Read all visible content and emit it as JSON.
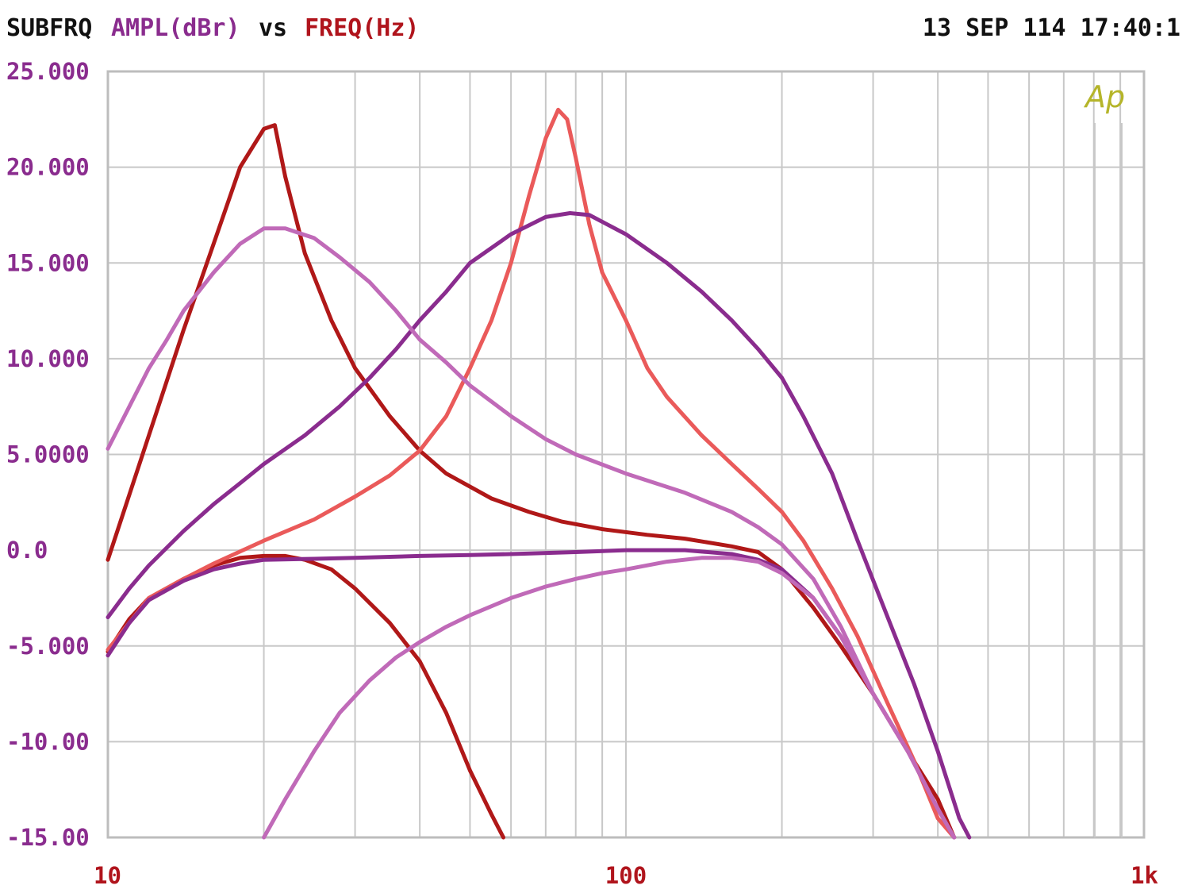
{
  "header": {
    "name": "SUBFRQ",
    "y_quantity": "AMPL(dBr)",
    "vs": "vs",
    "x_quantity": "FREQ(Hz)",
    "timestamp": "13 SEP 114 17:40:1"
  },
  "logo_text": "Ap",
  "colors": {
    "background": "#ffffff",
    "grid": "#c8c8c8",
    "frame": "#bdbdbd",
    "y_axis_text": "#8a2c8e",
    "x_axis_text": "#b0141c",
    "logo": "#b5b52a",
    "dark_red": "#b01818",
    "salmon": "#ea5a5a",
    "purple": "#8a2c8e",
    "lavender": "#c06ab8"
  },
  "chart_data": {
    "type": "line",
    "x_scale": "log",
    "xlim": [
      10,
      1000
    ],
    "ylim": [
      -15,
      25
    ],
    "grid": true,
    "x_ticks": [
      {
        "value": 10,
        "label": "10"
      },
      {
        "value": 100,
        "label": "100"
      },
      {
        "value": 1000,
        "label": "1k"
      }
    ],
    "y_ticks": [
      {
        "value": 25,
        "label": "25.000"
      },
      {
        "value": 20,
        "label": "20.000"
      },
      {
        "value": 15,
        "label": "15.000"
      },
      {
        "value": 10,
        "label": "10.000"
      },
      {
        "value": 5,
        "label": "5.0000"
      },
      {
        "value": 0,
        "label": "0.0"
      },
      {
        "value": -5,
        "label": "-5.000"
      },
      {
        "value": -10,
        "label": "-10.00"
      },
      {
        "value": -15,
        "label": "-15.00"
      }
    ],
    "series": [
      {
        "color": "dark_red",
        "points": [
          [
            10,
            -0.5
          ],
          [
            12,
            6
          ],
          [
            14,
            11.5
          ],
          [
            16,
            16
          ],
          [
            18,
            20
          ],
          [
            20,
            22
          ],
          [
            21,
            22.2
          ],
          [
            22,
            19.5
          ],
          [
            24,
            15.5
          ],
          [
            27,
            12
          ],
          [
            30,
            9.5
          ],
          [
            35,
            7
          ],
          [
            40,
            5.2
          ],
          [
            45,
            4
          ],
          [
            55,
            2.7
          ],
          [
            65,
            2
          ],
          [
            75,
            1.5
          ],
          [
            90,
            1.1
          ],
          [
            110,
            0.8
          ],
          [
            130,
            0.6
          ],
          [
            160,
            0.2
          ],
          [
            180,
            -0.1
          ],
          [
            200,
            -1
          ],
          [
            230,
            -3
          ],
          [
            260,
            -5
          ],
          [
            300,
            -7.5
          ],
          [
            350,
            -10.5
          ],
          [
            400,
            -13
          ],
          [
            430,
            -15
          ]
        ]
      },
      {
        "color": "dark_red",
        "points": [
          [
            10,
            -5.3
          ],
          [
            11,
            -3.6
          ],
          [
            12,
            -2.5
          ],
          [
            14,
            -1.5
          ],
          [
            16,
            -0.8
          ],
          [
            18,
            -0.4
          ],
          [
            20,
            -0.3
          ],
          [
            22,
            -0.3
          ],
          [
            24,
            -0.5
          ],
          [
            27,
            -1
          ],
          [
            30,
            -2
          ],
          [
            35,
            -3.8
          ],
          [
            40,
            -5.8
          ],
          [
            45,
            -8.5
          ],
          [
            50,
            -11.5
          ],
          [
            55,
            -13.8
          ],
          [
            58,
            -15
          ]
        ]
      },
      {
        "color": "salmon",
        "points": [
          [
            10,
            -5.2
          ],
          [
            12,
            -2.5
          ],
          [
            14,
            -1.5
          ],
          [
            16,
            -0.7
          ],
          [
            20,
            0.5
          ],
          [
            25,
            1.6
          ],
          [
            30,
            2.8
          ],
          [
            35,
            3.9
          ],
          [
            40,
            5.2
          ],
          [
            45,
            7
          ],
          [
            50,
            9.5
          ],
          [
            55,
            12
          ],
          [
            60,
            15
          ],
          [
            65,
            18.5
          ],
          [
            70,
            21.5
          ],
          [
            74,
            23
          ],
          [
            77,
            22.5
          ],
          [
            80,
            20.5
          ],
          [
            85,
            17
          ],
          [
            90,
            14.5
          ],
          [
            100,
            12
          ],
          [
            110,
            9.5
          ],
          [
            120,
            8
          ],
          [
            140,
            6
          ],
          [
            160,
            4.5
          ],
          [
            180,
            3.2
          ],
          [
            200,
            2
          ],
          [
            220,
            0.5
          ],
          [
            250,
            -2
          ],
          [
            280,
            -4.5
          ],
          [
            320,
            -8
          ],
          [
            360,
            -11
          ],
          [
            400,
            -14
          ],
          [
            430,
            -15
          ]
        ]
      },
      {
        "color": "purple",
        "points": [
          [
            10,
            -3.5
          ],
          [
            11,
            -2
          ],
          [
            12,
            -0.8
          ],
          [
            14,
            1
          ],
          [
            16,
            2.4
          ],
          [
            18,
            3.5
          ],
          [
            20,
            4.5
          ],
          [
            24,
            6
          ],
          [
            28,
            7.5
          ],
          [
            32,
            9
          ],
          [
            36,
            10.5
          ],
          [
            40,
            12
          ],
          [
            45,
            13.5
          ],
          [
            50,
            15
          ],
          [
            60,
            16.5
          ],
          [
            70,
            17.4
          ],
          [
            78,
            17.6
          ],
          [
            85,
            17.5
          ],
          [
            100,
            16.5
          ],
          [
            120,
            15
          ],
          [
            140,
            13.5
          ],
          [
            160,
            12
          ],
          [
            180,
            10.5
          ],
          [
            200,
            9
          ],
          [
            220,
            7
          ],
          [
            250,
            4
          ],
          [
            280,
            0.5
          ],
          [
            320,
            -3.5
          ],
          [
            360,
            -7
          ],
          [
            400,
            -10.5
          ],
          [
            440,
            -14
          ],
          [
            460,
            -15
          ]
        ]
      },
      {
        "color": "purple",
        "points": [
          [
            10,
            -5.5
          ],
          [
            11,
            -3.8
          ],
          [
            12,
            -2.6
          ],
          [
            14,
            -1.6
          ],
          [
            16,
            -1
          ],
          [
            18,
            -0.7
          ],
          [
            20,
            -0.5
          ],
          [
            25,
            -0.45
          ],
          [
            30,
            -0.4
          ],
          [
            40,
            -0.3
          ],
          [
            50,
            -0.25
          ],
          [
            60,
            -0.2
          ],
          [
            80,
            -0.1
          ],
          [
            100,
            0
          ],
          [
            130,
            0
          ],
          [
            160,
            -0.2
          ],
          [
            180,
            -0.5
          ],
          [
            200,
            -1
          ],
          [
            230,
            -2.5
          ],
          [
            260,
            -4.5
          ],
          [
            300,
            -7.5
          ],
          [
            350,
            -10.5
          ],
          [
            400,
            -13.5
          ],
          [
            430,
            -15
          ]
        ]
      },
      {
        "color": "lavender",
        "points": [
          [
            10,
            5.3
          ],
          [
            11,
            7.5
          ],
          [
            12,
            9.5
          ],
          [
            13,
            11
          ],
          [
            14,
            12.5
          ],
          [
            16,
            14.5
          ],
          [
            18,
            16
          ],
          [
            20,
            16.8
          ],
          [
            22,
            16.8
          ],
          [
            25,
            16.3
          ],
          [
            28,
            15.3
          ],
          [
            32,
            14
          ],
          [
            36,
            12.5
          ],
          [
            40,
            11
          ],
          [
            45,
            9.8
          ],
          [
            50,
            8.6
          ],
          [
            60,
            7
          ],
          [
            70,
            5.8
          ],
          [
            80,
            5
          ],
          [
            100,
            4
          ],
          [
            130,
            3
          ],
          [
            160,
            2
          ],
          [
            180,
            1.2
          ],
          [
            200,
            0.3
          ],
          [
            230,
            -1.5
          ],
          [
            260,
            -4
          ],
          [
            300,
            -7.5
          ],
          [
            350,
            -10.5
          ],
          [
            400,
            -13.5
          ],
          [
            430,
            -15
          ]
        ]
      },
      {
        "color": "lavender",
        "points": [
          [
            20,
            -15
          ],
          [
            22,
            -13
          ],
          [
            25,
            -10.5
          ],
          [
            28,
            -8.5
          ],
          [
            32,
            -6.8
          ],
          [
            36,
            -5.6
          ],
          [
            40,
            -4.8
          ],
          [
            45,
            -4
          ],
          [
            50,
            -3.4
          ],
          [
            60,
            -2.5
          ],
          [
            70,
            -1.9
          ],
          [
            80,
            -1.5
          ],
          [
            90,
            -1.2
          ],
          [
            100,
            -1
          ],
          [
            120,
            -0.6
          ],
          [
            140,
            -0.4
          ],
          [
            160,
            -0.4
          ],
          [
            180,
            -0.6
          ],
          [
            200,
            -1.2
          ],
          [
            230,
            -2.5
          ],
          [
            260,
            -4.5
          ],
          [
            300,
            -7.5
          ],
          [
            350,
            -10.5
          ],
          [
            400,
            -13.5
          ],
          [
            430,
            -15
          ]
        ]
      }
    ]
  }
}
